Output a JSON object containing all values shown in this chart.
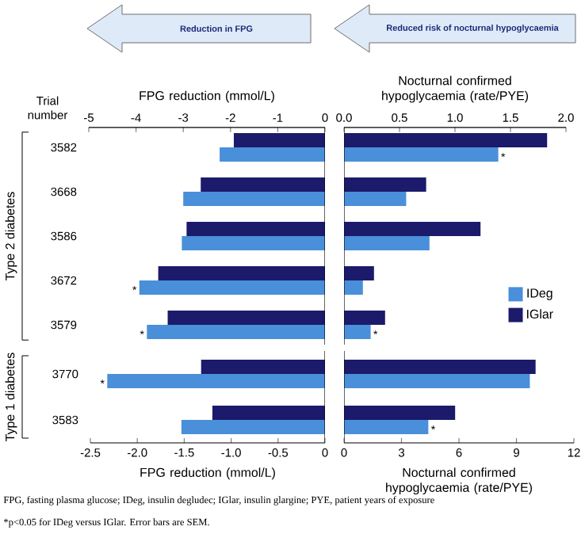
{
  "chart_data": [
    {
      "type": "bar",
      "orientation": "horizontal",
      "title": "Reduction in FPG",
      "xlabel": "FPG reduction (mmol/L)",
      "ylabel": "Type 2 diabetes",
      "categories": [
        "3582",
        "3668",
        "3586",
        "3672",
        "3579"
      ],
      "series": [
        {
          "color": "#4a8fd9",
          "values": [
            -2.23,
            -3.0,
            -3.03,
            -3.93,
            -3.77
          ]
        },
        {
          "color": "#1c1a6b",
          "values": [
            -1.93,
            -2.63,
            -2.93,
            -3.53,
            -3.33
          ]
        }
      ],
      "xlim": [
        -5,
        0
      ],
      "xticks": [
        -5,
        -4,
        -3,
        -2,
        -1,
        0
      ],
      "annotations": [
        "Trial number",
        {
          "text": "*",
          "x": -3.93,
          "y": "3672"
        },
        {
          "text": "*",
          "x": -3.77,
          "y": "3579"
        }
      ]
    },
    {
      "type": "bar",
      "orientation": "horizontal",
      "title": "Reduced risk of nocturnal hypoglycaemia",
      "xlabel": "Nocturnal confirmed hypoglycaemia (rate/PYE)",
      "categories": [
        "3582",
        "3668",
        "3586",
        "3672",
        "3579"
      ],
      "series": [
        {
          "name": "IDeg",
          "color": "#4a8fd9",
          "values": [
            1.39,
            0.56,
            0.77,
            0.17,
            0.24
          ]
        },
        {
          "name": "IGlar",
          "color": "#1c1a6b",
          "values": [
            1.83,
            0.74,
            1.23,
            0.27,
            0.37
          ]
        }
      ],
      "xlim": [
        0,
        2
      ],
      "xticks": [
        {
          "value": 0,
          "label": "0.0"
        },
        0.5,
        {
          "value": 1,
          "label": "1.0"
        },
        1.5,
        {
          "value": 2,
          "label": "2.0"
        }
      ],
      "tick_labels": "x",
      "legend": "bottom right",
      "annotations": [
        {
          "text": "*",
          "x": 1.39,
          "y": "3582"
        },
        {
          "text": "*",
          "x": 0.24,
          "y": "3579"
        }
      ]
    },
    {
      "type": "bar",
      "orientation": "horizontal",
      "xlabel": "FPG reduction (mmol/L)",
      "ylabel": "Type 1 diabetes",
      "categories": [
        "3770",
        "3583"
      ],
      "series": [
        {
          "color": "#4a8fd9",
          "values": [
            -2.32,
            -1.53
          ]
        },
        {
          "color": "#1c1a6b",
          "values": [
            -1.32,
            -1.2
          ]
        }
      ],
      "xlim": [
        -2.5,
        0
      ],
      "xticks": [
        -2.5,
        {
          "value": -2,
          "label": "-2.0"
        },
        -1.5,
        {
          "value": -1,
          "label": "-1.0"
        },
        -0.5,
        0
      ],
      "annotations": [
        "FPG, fasting plasma glucose; IDeg, insulin degludec; IGlar, insulin glargine; PYE, patient years of exposure",
        "*p<0.05 for IDeg versus IGlar. Error bars are SEM.",
        {
          "text": "*",
          "x": -2.32,
          "y": "3770"
        }
      ]
    },
    {
      "type": "bar",
      "orientation": "horizontal",
      "xlabel": "Nocturnal confirmed hypoglycaemia (rate/PYE)",
      "categories": [
        "3770",
        "3583"
      ],
      "series": [
        {
          "color": "#4a8fd9",
          "values": [
            9.7,
            4.4
          ]
        },
        {
          "color": "#1c1a6b",
          "values": [
            10.0,
            5.8
          ]
        }
      ],
      "xlim": [
        0,
        12
      ],
      "xticks": [
        0,
        3,
        6,
        9,
        12
      ],
      "tick_labels": "x",
      "annotations": [
        {
          "text": "*",
          "x": 4.4,
          "y": "3583"
        }
      ]
    }
  ]
}
